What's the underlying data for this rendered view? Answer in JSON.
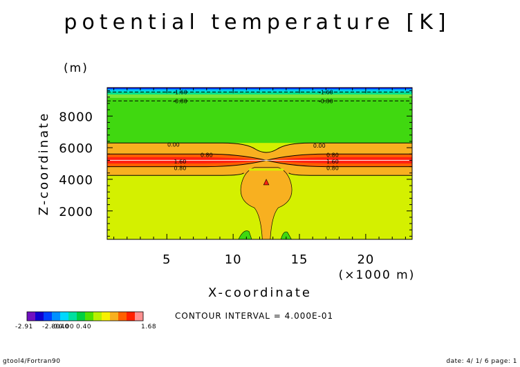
{
  "chart_data": {
    "type": "heatmap",
    "title": "potential temperature [K]",
    "xlabel": "X-coordinate",
    "x_unit": "(×1000 m)",
    "ylabel": "Z-coordinate",
    "y_unit": "(m)",
    "xlim": [
      0.5,
      23.5
    ],
    "ylim": [
      200,
      9800
    ],
    "x_ticks": [
      5,
      10,
      15,
      20
    ],
    "y_ticks": [
      2000,
      4000,
      6000,
      8000
    ],
    "contour_labels": [
      {
        "text": "-1.60",
        "x": 6.0,
        "y": 9520
      },
      {
        "text": "-0.80",
        "x": 6.0,
        "y": 8960
      },
      {
        "text": "-1.60",
        "x": 17.0,
        "y": 9520
      },
      {
        "text": "-0.80",
        "x": 17.0,
        "y": 8960
      },
      {
        "text": "0.00",
        "x": 5.5,
        "y": 6200
      },
      {
        "text": "0.00",
        "x": 16.5,
        "y": 6130
      },
      {
        "text": "0.80",
        "x": 8.0,
        "y": 5550
      },
      {
        "text": "1.60",
        "x": 6.0,
        "y": 5140
      },
      {
        "text": "0.80",
        "x": 6.0,
        "y": 4720
      },
      {
        "text": "0.80",
        "x": 17.5,
        "y": 5550
      },
      {
        "text": "1.60",
        "x": 17.5,
        "y": 5140
      },
      {
        "text": "0.80",
        "x": 17.5,
        "y": 4720
      }
    ],
    "colorbar": {
      "min_label": "-2.91",
      "tick_labels": [
        "-2.80",
        "-0.40",
        "0.00",
        "0.40"
      ],
      "max_label": "1.68",
      "colors": [
        "#7010c0",
        "#1000d0",
        "#0040ff",
        "#0090ff",
        "#00d8ff",
        "#00e0a0",
        "#00d040",
        "#50e000",
        "#b8f000",
        "#f8f000",
        "#f8b020",
        "#ff6000",
        "#ff2000",
        "#ff9090"
      ]
    },
    "field_colors": {
      "deep_blue": "#1000d0",
      "blue": "#0040ff",
      "sky": "#00b8ff",
      "cyan": "#00e0d8",
      "teal": "#00e090",
      "green": "#40d810",
      "light_green": "#78e838",
      "yellow_green": "#d4f000",
      "orange": "#f8b020",
      "dark_orange": "#ff6000",
      "red": "#ff2010"
    }
  },
  "footer": {
    "contour_interval": "CONTOUR INTERVAL = 4.000E-01",
    "left": "gtool4/Fortran90",
    "right": "date: 4/ 1/ 6 page: 1"
  }
}
